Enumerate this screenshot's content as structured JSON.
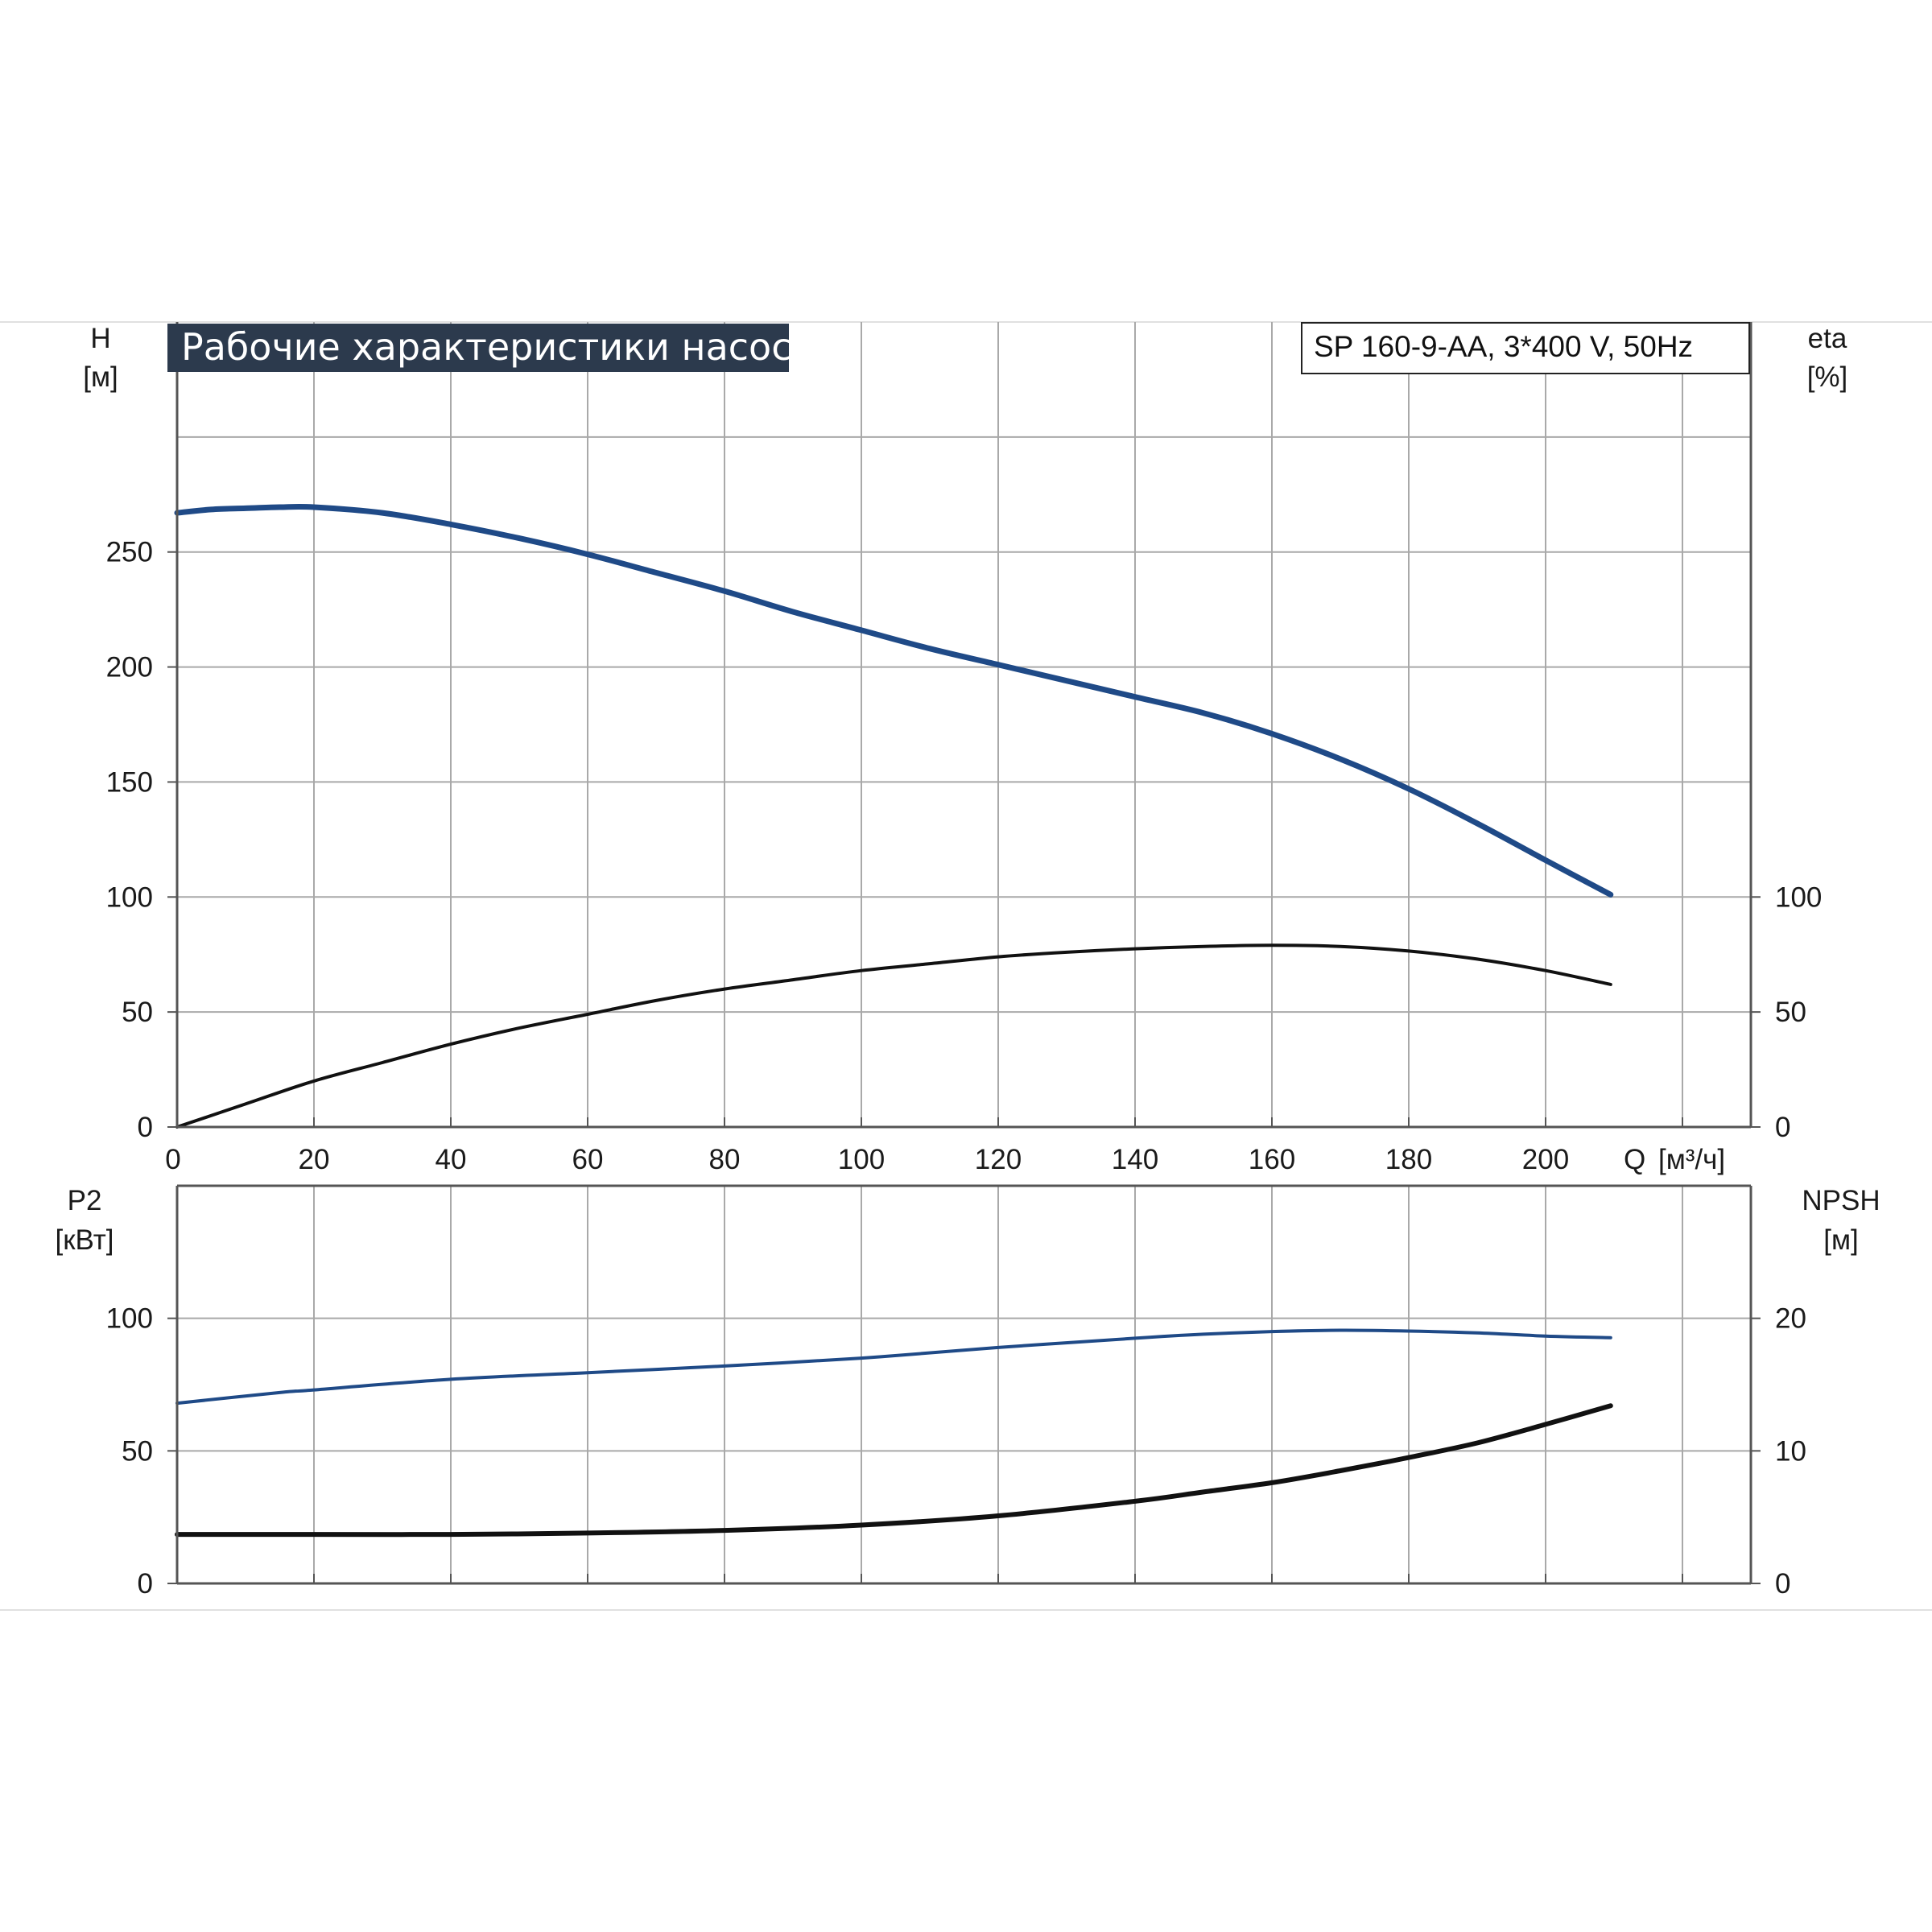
{
  "page": {
    "title": "Рабочие характеристики насоса",
    "model": "SP 160-9-AA, 3*400 V, 50Hz"
  },
  "colors": {
    "blue_curve": "#1f4a87",
    "black_curve": "#111111",
    "title_bg": "#2c3a4d"
  },
  "chart_data": [
    {
      "type": "line",
      "name": "upper",
      "xlabel_parts": [
        "Q",
        "[м³/ч]"
      ],
      "x_ticks": [
        0,
        20,
        40,
        60,
        80,
        100,
        120,
        140,
        160,
        180,
        200
      ],
      "xlim": [
        0,
        230
      ],
      "left_axis": {
        "label": "H",
        "unit": "[м]",
        "ticks": [
          0,
          50,
          100,
          150,
          200,
          250
        ],
        "ylim": [
          0,
          350
        ]
      },
      "right_axis": {
        "label": "eta",
        "unit": "[%]",
        "ticks": [
          0,
          50,
          100
        ],
        "ylim": [
          0,
          350
        ]
      },
      "grid": true,
      "series": [
        {
          "axis": "left",
          "color": "blue",
          "width": 7,
          "x": [
            0,
            5,
            10,
            15,
            20,
            30,
            40,
            50,
            60,
            70,
            80,
            90,
            100,
            110,
            120,
            130,
            140,
            150,
            160,
            170,
            180,
            190,
            200,
            209.5
          ],
          "y": [
            267,
            268.5,
            269,
            269.5,
            269.5,
            267,
            262,
            256,
            249,
            241,
            233,
            224,
            216,
            208,
            201,
            194,
            187,
            180,
            171,
            160,
            147,
            132,
            116,
            101
          ]
        },
        {
          "axis": "right",
          "color": "black",
          "width": 4,
          "x": [
            0,
            10,
            20,
            30,
            40,
            50,
            60,
            70,
            80,
            90,
            100,
            110,
            120,
            130,
            140,
            150,
            160,
            170,
            180,
            190,
            200,
            209.5
          ],
          "y": [
            0,
            10,
            20,
            28,
            36,
            43,
            49,
            55,
            60,
            64,
            68,
            71,
            74,
            76,
            77.5,
            78.5,
            79,
            78.5,
            76.5,
            73,
            68,
            62
          ]
        }
      ]
    },
    {
      "type": "line",
      "name": "lower",
      "x_ticks": [
        0,
        20,
        40,
        60,
        80,
        100,
        120,
        140,
        160,
        180,
        200
      ],
      "xlim": [
        0,
        230
      ],
      "left_axis": {
        "label": "P2",
        "unit": "[кВт]",
        "ticks": [
          0,
          50,
          100
        ],
        "ylim": [
          0,
          150
        ]
      },
      "right_axis": {
        "label": "NPSH",
        "unit": "[м]",
        "ticks": [
          0,
          10,
          20
        ],
        "ylim": [
          0,
          30
        ]
      },
      "grid": true,
      "series": [
        {
          "axis": "left",
          "color": "blue",
          "width": 4,
          "x": [
            0,
            15,
            20,
            40,
            60,
            80,
            100,
            120,
            140,
            150,
            160,
            170,
            180,
            190,
            200,
            209.5
          ],
          "y": [
            68,
            72,
            73,
            77,
            79.5,
            82,
            85,
            89,
            92.5,
            94,
            95,
            95.5,
            95.2,
            94.5,
            93.3,
            92.7
          ]
        },
        {
          "axis": "right",
          "color": "black",
          "width": 6,
          "x": [
            0,
            15,
            20,
            40,
            60,
            80,
            100,
            120,
            140,
            150,
            160,
            170,
            180,
            190,
            200,
            209.5
          ],
          "y": [
            3.7,
            3.7,
            3.7,
            3.7,
            3.8,
            4.0,
            4.4,
            5.1,
            6.2,
            6.9,
            7.6,
            8.5,
            9.5,
            10.6,
            12.0,
            13.4
          ]
        }
      ]
    }
  ]
}
